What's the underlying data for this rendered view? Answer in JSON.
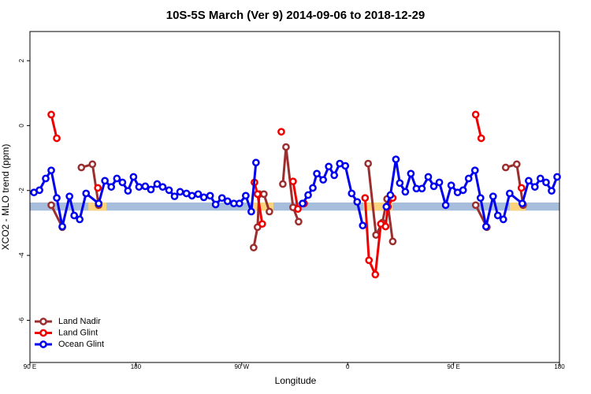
{
  "chart_data": {
    "type": "line",
    "title": "10S-5S March (Ver 9)   2014-09-06 to 2018-12-29",
    "xlabel": "Longitude",
    "ylabel": "XCO2 - MLO trend (ppm)",
    "xlim": [
      90,
      540
    ],
    "ylim": [
      -7.3,
      2.9
    ],
    "xticks": [
      {
        "value": 90,
        "label": "90 E"
      },
      180,
      {
        "value": 270,
        "label": "90 W"
      },
      {
        "value": 360,
        "label": "0"
      },
      {
        "value": 450,
        "label": "90 E"
      },
      {
        "value": 540,
        "label": "180"
      }
    ],
    "yticks": [
      2,
      0,
      -2,
      -4,
      -6
    ],
    "legend": "bottom-left",
    "band": {
      "range": [
        -2.62,
        -2.37
      ],
      "color": "#a7bddc"
    },
    "highlight": {
      "color": "#fbd37c",
      "x_ranges": [
        [
          139.7,
          155.1
        ],
        [
          279.4,
          296.9
        ],
        [
          373.4,
          398.3
        ],
        [
          497.7,
          511.1
        ]
      ]
    },
    "series": [
      {
        "name": "Land Nadir",
        "color": "#9b2f2f",
        "x": [
          108.1,
          117.5,
          null,
          133.7,
          143.1,
          148.4,
          null,
          280.1,
          283.4,
          284.8,
          288.8,
          293.5,
          null,
          304.9,
          307.6,
          313.6,
          318.3,
          null,
          377.4,
          384.1,
          389.5,
          393.5,
          398.3,
          null,
          468.8,
          478.3,
          null,
          494.3,
          503.7,
          509.1
        ],
        "values": [
          -2.45,
          -3.13,
          null,
          -1.29,
          -1.19,
          -2.45,
          null,
          -3.76,
          -3.13,
          -2.11,
          -2.11,
          -2.65,
          null,
          -1.8,
          -0.66,
          -2.52,
          -2.96,
          null,
          -1.17,
          -3.37,
          -2.99,
          -2.26,
          -3.57,
          null,
          -2.45,
          -3.13,
          null,
          -1.29,
          -1.19,
          -2.45
        ]
      },
      {
        "name": "Land Glint",
        "color": "#ee0000",
        "x": [
          108.1,
          112.8,
          null,
          147.7,
          null,
          280.8,
          283.4,
          287.4,
          null,
          303.6,
          null,
          313.6,
          317.7,
          323.0,
          null,
          374.8,
          378.1,
          383.5,
          388.2,
          392.2,
          394.2,
          398.3,
          null,
          468.8,
          473.5,
          null,
          507.7
        ],
        "values": [
          0.34,
          -0.39,
          null,
          -1.92,
          null,
          -1.75,
          -2.11,
          -3.03,
          null,
          -0.19,
          null,
          -1.72,
          -2.57,
          -2.4,
          null,
          -2.23,
          -4.15,
          -4.59,
          -3.03,
          -3.11,
          -2.5,
          -2.23,
          null,
          0.34,
          -0.39,
          null,
          -1.92
        ]
      },
      {
        "name": "Ocean Glint",
        "color": "#0000ee",
        "x": [
          93.4,
          98.1,
          103.4,
          108.1,
          112.8,
          117.5,
          123.6,
          127.6,
          132.3,
          137.7,
          148.4,
          153.7,
          159.1,
          163.9,
          168.6,
          173.3,
          178.0,
          182.7,
          188.0,
          192.8,
          198.1,
          202.8,
          208.2,
          212.9,
          217.6,
          223.0,
          227.7,
          233.0,
          237.8,
          243.1,
          247.8,
          253.2,
          257.9,
          263.3,
          268.0,
          273.4,
          278.1,
          282.1,
          null,
          321.7,
          326.4,
          330.4,
          333.8,
          339.2,
          343.9,
          348.6,
          353.3,
          358.0,
          363.4,
          368.1,
          372.8,
          null,
          392.9,
          396.3,
          401.0,
          404.3,
          409.0,
          413.7,
          418.4,
          423.1,
          428.5,
          433.2,
          437.9,
          443.3,
          448.0,
          453.4,
          458.1,
          462.8,
          468.2,
          472.9,
          477.6,
          483.6,
          487.6,
          492.3,
          497.7,
          508.4,
          513.8,
          519.1,
          523.8,
          528.6,
          533.3,
          538.0
        ],
        "values": [
          -2.06,
          -1.99,
          -1.63,
          -1.38,
          -2.23,
          -3.11,
          -2.18,
          -2.77,
          -2.89,
          -2.09,
          -2.4,
          -1.7,
          -1.89,
          -1.63,
          -1.75,
          -2.01,
          -1.58,
          -1.89,
          -1.87,
          -1.97,
          -1.8,
          -1.89,
          -1.99,
          -2.18,
          -2.04,
          -2.09,
          -2.16,
          -2.11,
          -2.21,
          -2.16,
          -2.43,
          -2.23,
          -2.33,
          -2.4,
          -2.4,
          -2.16,
          -2.65,
          -1.14,
          null,
          -2.4,
          -2.14,
          -1.92,
          -1.48,
          -1.67,
          -1.26,
          -1.53,
          -1.17,
          -1.24,
          -2.09,
          -2.35,
          -3.08,
          null,
          -2.5,
          -2.14,
          -1.04,
          -1.77,
          -2.04,
          -1.48,
          -1.94,
          -1.94,
          -1.58,
          -1.87,
          -1.75,
          -2.45,
          -1.84,
          -2.06,
          -1.99,
          -1.63,
          -1.38,
          -2.23,
          -3.11,
          -2.18,
          -2.77,
          -2.89,
          -2.09,
          -2.4,
          -1.7,
          -1.89,
          -1.63,
          -1.75,
          -2.01,
          -1.58
        ]
      }
    ]
  }
}
